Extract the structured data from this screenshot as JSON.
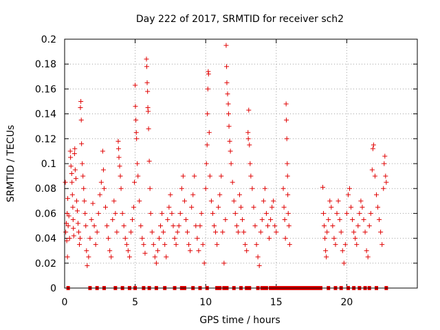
{
  "chart_data": {
    "type": "scatter",
    "title": "Day 222 of 2017, SRMTID for receiver sch2",
    "xlabel": "GPS time / hours",
    "ylabel": "SRMTID / TECUs",
    "xlim": [
      0,
      25
    ],
    "ylim": [
      0,
      0.2
    ],
    "x_ticks": [
      0,
      5,
      10,
      15,
      20
    ],
    "x_tick_labels": [
      "0",
      "5",
      "10",
      "15",
      "20"
    ],
    "y_ticks": [
      0,
      0.02,
      0.04,
      0.06,
      0.08,
      0.1,
      0.12,
      0.14,
      0.16,
      0.18,
      0.2
    ],
    "y_tick_labels": [
      "0",
      "0.02",
      "0.04",
      "0.06",
      "0.08",
      "0.1",
      "0.12",
      "0.14",
      "0.16",
      "0.18",
      "0.2"
    ],
    "grid": true,
    "marker": "+",
    "series_color": "#e00000",
    "series": [
      {
        "name": "SRMTID",
        "points": [
          [
            0.05,
            0.085
          ],
          [
            0.08,
            0.045
          ],
          [
            0.12,
            0.052
          ],
          [
            0.15,
            0.038
          ],
          [
            0.18,
            0.06
          ],
          [
            0.2,
            0.025
          ],
          [
            0.22,
            0.072
          ],
          [
            0.25,
            0.05
          ],
          [
            0.3,
            0.058
          ],
          [
            0.35,
            0.04
          ],
          [
            0.4,
            0.11
          ],
          [
            0.42,
            0.105
          ],
          [
            0.45,
            0.098
          ],
          [
            0.5,
            0.092
          ],
          [
            0.52,
            0.085
          ],
          [
            0.55,
            0.075
          ],
          [
            0.58,
            0.065
          ],
          [
            0.6,
            0.055
          ],
          [
            0.62,
            0.048
          ],
          [
            0.65,
            0.042
          ],
          [
            0.7,
            0.108
          ],
          [
            0.72,
            0.112
          ],
          [
            0.75,
            0.095
          ],
          [
            0.8,
            0.088
          ],
          [
            0.85,
            0.07
          ],
          [
            0.9,
            0.062
          ],
          [
            0.95,
            0.052
          ],
          [
            1.0,
            0.045
          ],
          [
            1.05,
            0.035
          ],
          [
            1.1,
            0.04
          ],
          [
            1.12,
            0.145
          ],
          [
            1.15,
            0.15
          ],
          [
            1.18,
            0.135
          ],
          [
            1.2,
            0.116
          ],
          [
            1.25,
            0.1
          ],
          [
            1.3,
            0.09
          ],
          [
            1.35,
            0.08
          ],
          [
            1.4,
            0.07
          ],
          [
            1.45,
            0.06
          ],
          [
            1.5,
            0.05
          ],
          [
            1.55,
            0.03
          ],
          [
            1.6,
            0.018
          ],
          [
            1.7,
            0.025
          ],
          [
            1.8,
            0.04
          ],
          [
            1.9,
            0.055
          ],
          [
            2.0,
            0.068
          ],
          [
            2.1,
            0.05
          ],
          [
            2.2,
            0.035
          ],
          [
            2.3,
            0.045
          ],
          [
            2.4,
            0.06
          ],
          [
            2.5,
            0.075
          ],
          [
            2.6,
            0.085
          ],
          [
            2.7,
            0.11
          ],
          [
            2.75,
            0.095
          ],
          [
            2.8,
            0.08
          ],
          [
            2.9,
            0.065
          ],
          [
            3.0,
            0.05
          ],
          [
            3.1,
            0.04
          ],
          [
            3.2,
            0.03
          ],
          [
            3.3,
            0.025
          ],
          [
            3.4,
            0.055
          ],
          [
            3.5,
            0.07
          ],
          [
            3.6,
            0.06
          ],
          [
            3.7,
            0.045
          ],
          [
            3.8,
            0.118
          ],
          [
            3.82,
            0.112
          ],
          [
            3.85,
            0.105
          ],
          [
            3.9,
            0.098
          ],
          [
            3.95,
            0.09
          ],
          [
            4.0,
            0.08
          ],
          [
            4.1,
            0.06
          ],
          [
            4.2,
            0.05
          ],
          [
            4.3,
            0.04
          ],
          [
            4.4,
            0.035
          ],
          [
            4.5,
            0.03
          ],
          [
            4.6,
            0.025
          ],
          [
            4.7,
            0.045
          ],
          [
            4.8,
            0.055
          ],
          [
            4.9,
            0.065
          ],
          [
            4.95,
            0.085
          ],
          [
            5.0,
            0.163
          ],
          [
            5.02,
            0.146
          ],
          [
            5.05,
            0.135
          ],
          [
            5.08,
            0.125
          ],
          [
            5.1,
            0.12
          ],
          [
            5.15,
            0.1
          ],
          [
            5.2,
            0.09
          ],
          [
            5.3,
            0.07
          ],
          [
            5.4,
            0.05
          ],
          [
            5.5,
            0.04
          ],
          [
            5.6,
            0.035
          ],
          [
            5.7,
            0.028
          ],
          [
            5.8,
            0.184
          ],
          [
            5.82,
            0.178
          ],
          [
            5.85,
            0.165
          ],
          [
            5.88,
            0.158
          ],
          [
            5.9,
            0.145
          ],
          [
            5.92,
            0.142
          ],
          [
            5.95,
            0.128
          ],
          [
            6.0,
            0.102
          ],
          [
            6.05,
            0.08
          ],
          [
            6.1,
            0.06
          ],
          [
            6.2,
            0.045
          ],
          [
            6.3,
            0.035
          ],
          [
            6.4,
            0.025
          ],
          [
            6.5,
            0.02
          ],
          [
            6.6,
            0.03
          ],
          [
            6.7,
            0.04
          ],
          [
            6.8,
            0.05
          ],
          [
            6.9,
            0.06
          ],
          [
            7.0,
            0.045
          ],
          [
            7.1,
            0.035
          ],
          [
            7.2,
            0.025
          ],
          [
            7.3,
            0.055
          ],
          [
            7.4,
            0.065
          ],
          [
            7.5,
            0.075
          ],
          [
            7.6,
            0.06
          ],
          [
            7.7,
            0.05
          ],
          [
            7.8,
            0.04
          ],
          [
            7.9,
            0.035
          ],
          [
            8.0,
            0.045
          ],
          [
            8.1,
            0.05
          ],
          [
            8.2,
            0.06
          ],
          [
            8.3,
            0.08
          ],
          [
            8.4,
            0.09
          ],
          [
            8.5,
            0.07
          ],
          [
            8.6,
            0.055
          ],
          [
            8.7,
            0.045
          ],
          [
            8.8,
            0.035
          ],
          [
            8.9,
            0.03
          ],
          [
            9.0,
            0.065
          ],
          [
            9.1,
            0.075
          ],
          [
            9.2,
            0.09
          ],
          [
            9.3,
            0.05
          ],
          [
            9.4,
            0.04
          ],
          [
            9.5,
            0.03
          ],
          [
            9.6,
            0.05
          ],
          [
            9.7,
            0.06
          ],
          [
            9.8,
            0.035
          ],
          [
            9.9,
            0.02
          ],
          [
            10.0,
            0.08
          ],
          [
            10.05,
            0.1
          ],
          [
            10.1,
            0.115
          ],
          [
            10.12,
            0.14
          ],
          [
            10.15,
            0.16
          ],
          [
            10.18,
            0.174
          ],
          [
            10.2,
            0.172
          ],
          [
            10.25,
            0.125
          ],
          [
            10.3,
            0.09
          ],
          [
            10.4,
            0.07
          ],
          [
            10.5,
            0.06
          ],
          [
            10.6,
            0.05
          ],
          [
            10.7,
            0.045
          ],
          [
            10.8,
            0.035
          ],
          [
            10.9,
            0.065
          ],
          [
            11.0,
            0.075
          ],
          [
            11.1,
            0.09
          ],
          [
            11.2,
            0.045
          ],
          [
            11.3,
            0.02
          ],
          [
            11.4,
            0.055
          ],
          [
            11.45,
            0.195
          ],
          [
            11.48,
            0.178
          ],
          [
            11.5,
            0.165
          ],
          [
            11.55,
            0.156
          ],
          [
            11.6,
            0.148
          ],
          [
            11.62,
            0.14
          ],
          [
            11.65,
            0.13
          ],
          [
            11.7,
            0.118
          ],
          [
            11.75,
            0.11
          ],
          [
            11.8,
            0.1
          ],
          [
            11.9,
            0.085
          ],
          [
            12.0,
            0.07
          ],
          [
            12.1,
            0.06
          ],
          [
            12.2,
            0.05
          ],
          [
            12.3,
            0.045
          ],
          [
            12.4,
            0.075
          ],
          [
            12.5,
            0.065
          ],
          [
            12.6,
            0.055
          ],
          [
            12.7,
            0.045
          ],
          [
            12.8,
            0.035
          ],
          [
            12.9,
            0.03
          ],
          [
            13.0,
            0.125
          ],
          [
            13.02,
            0.12
          ],
          [
            13.05,
            0.143
          ],
          [
            13.1,
            0.115
          ],
          [
            13.15,
            0.1
          ],
          [
            13.2,
            0.09
          ],
          [
            13.3,
            0.08
          ],
          [
            13.4,
            0.065
          ],
          [
            13.5,
            0.05
          ],
          [
            13.6,
            0.035
          ],
          [
            13.7,
            0.025
          ],
          [
            13.8,
            0.018
          ],
          [
            13.9,
            0.045
          ],
          [
            14.0,
            0.055
          ],
          [
            14.1,
            0.07
          ],
          [
            14.2,
            0.08
          ],
          [
            14.3,
            0.06
          ],
          [
            14.4,
            0.05
          ],
          [
            14.5,
            0.04
          ],
          [
            14.6,
            0.055
          ],
          [
            14.7,
            0.065
          ],
          [
            14.8,
            0.07
          ],
          [
            14.9,
            0.05
          ],
          [
            15.0,
            0.045
          ],
          [
            15.5,
            0.08
          ],
          [
            15.55,
            0.065
          ],
          [
            15.6,
            0.055
          ],
          [
            15.65,
            0.04
          ],
          [
            15.7,
            0.148
          ],
          [
            15.72,
            0.135
          ],
          [
            15.75,
            0.12
          ],
          [
            15.78,
            0.1
          ],
          [
            15.8,
            0.09
          ],
          [
            15.82,
            0.075
          ],
          [
            15.85,
            0.06
          ],
          [
            15.9,
            0.05
          ],
          [
            15.95,
            0.035
          ],
          [
            18.3,
            0.081
          ],
          [
            18.35,
            0.06
          ],
          [
            18.4,
            0.05
          ],
          [
            18.45,
            0.04
          ],
          [
            18.5,
            0.03
          ],
          [
            18.55,
            0.025
          ],
          [
            18.6,
            0.045
          ],
          [
            18.7,
            0.055
          ],
          [
            18.8,
            0.07
          ],
          [
            18.9,
            0.065
          ],
          [
            19.0,
            0.05
          ],
          [
            19.1,
            0.04
          ],
          [
            19.2,
            0.035
          ],
          [
            19.3,
            0.06
          ],
          [
            19.4,
            0.07
          ],
          [
            19.5,
            0.055
          ],
          [
            19.6,
            0.045
          ],
          [
            19.7,
            0.03
          ],
          [
            19.8,
            0.02
          ],
          [
            19.9,
            0.035
          ],
          [
            20.0,
            0.06
          ],
          [
            20.1,
            0.075
          ],
          [
            20.2,
            0.08
          ],
          [
            20.3,
            0.065
          ],
          [
            20.4,
            0.055
          ],
          [
            20.5,
            0.045
          ],
          [
            20.6,
            0.04
          ],
          [
            20.7,
            0.035
          ],
          [
            20.8,
            0.05
          ],
          [
            20.9,
            0.06
          ],
          [
            21.0,
            0.07
          ],
          [
            21.1,
            0.065
          ],
          [
            21.2,
            0.055
          ],
          [
            21.3,
            0.045
          ],
          [
            21.4,
            0.03
          ],
          [
            21.5,
            0.025
          ],
          [
            21.6,
            0.05
          ],
          [
            21.7,
            0.06
          ],
          [
            21.8,
            0.095
          ],
          [
            21.85,
            0.112
          ],
          [
            21.9,
            0.115
          ],
          [
            22.0,
            0.09
          ],
          [
            22.1,
            0.075
          ],
          [
            22.2,
            0.065
          ],
          [
            22.3,
            0.055
          ],
          [
            22.4,
            0.045
          ],
          [
            22.5,
            0.035
          ],
          [
            22.6,
            0.08
          ],
          [
            22.65,
            0.1
          ],
          [
            22.7,
            0.106
          ],
          [
            22.75,
            0.09
          ],
          [
            22.8,
            0.085
          ]
        ]
      }
    ],
    "gap_markers": [
      0.25,
      1.8,
      2.3,
      2.8,
      3.6,
      4.1,
      4.6,
      5.0,
      5.6,
      6.0,
      6.5,
      7.1,
      7.8,
      8.3,
      8.5,
      9.1,
      9.6,
      10.1,
      10.8,
      11.0,
      11.3,
      11.5,
      12.0,
      12.5,
      12.9,
      13.1,
      13.7,
      14.0,
      14.1,
      14.3,
      14.6,
      14.8,
      14.9,
      15.05,
      15.1,
      15.25,
      15.3,
      15.4,
      15.5,
      15.6,
      15.7,
      15.9,
      16.0,
      16.1,
      16.2,
      16.3,
      16.4,
      16.5,
      16.6,
      16.7,
      16.8,
      16.9,
      17.0,
      17.1,
      17.2,
      17.3,
      17.4,
      17.5,
      17.6,
      17.7,
      17.8,
      17.9,
      18.05,
      18.15,
      18.7,
      19.2,
      19.6,
      20.1,
      20.5,
      20.9,
      21.3,
      21.6,
      22.1,
      22.8
    ]
  }
}
